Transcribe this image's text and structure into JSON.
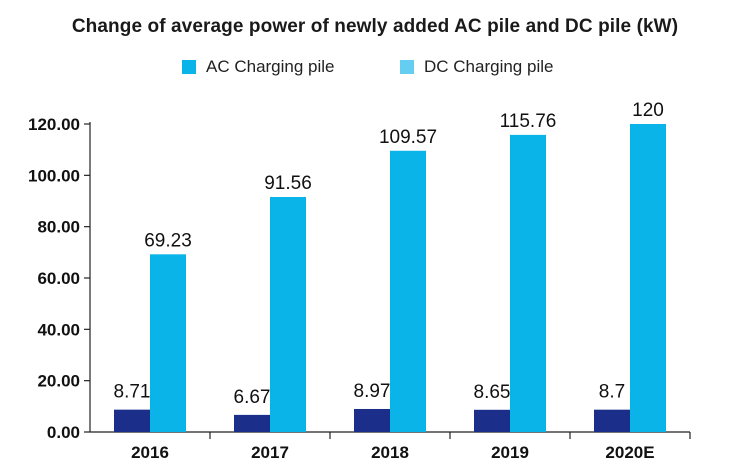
{
  "chart_data": {
    "type": "bar",
    "title": "Change of average power of newly added AC pile and DC pile (kW)",
    "categories": [
      "2016",
      "2017",
      "2018",
      "2019",
      "2020E"
    ],
    "series": [
      {
        "name": "AC Charging pile",
        "values": [
          8.71,
          6.67,
          8.97,
          8.65,
          8.7
        ],
        "labels": [
          "8.71",
          "6.67",
          "8.97",
          "8.65",
          "8.7"
        ],
        "color": "#1a2e8a"
      },
      {
        "name": "DC Charging pile",
        "values": [
          69.23,
          91.56,
          109.57,
          115.76,
          120
        ],
        "labels": [
          "69.23",
          "91.56",
          "109.57",
          "115.76",
          "120"
        ],
        "color": "#0ab4e8"
      }
    ],
    "legend": {
      "placement": "top",
      "entries": [
        {
          "label": "AC Charging pile",
          "color": "#0ab4e8"
        },
        {
          "label": "DC Charging pile",
          "color": "#64cdf0"
        }
      ]
    },
    "yticks": [
      "0.00",
      "20.00",
      "40.00",
      "60.00",
      "80.00",
      "100.00",
      "120.00"
    ],
    "ylim": [
      0,
      120
    ],
    "grid": false
  }
}
